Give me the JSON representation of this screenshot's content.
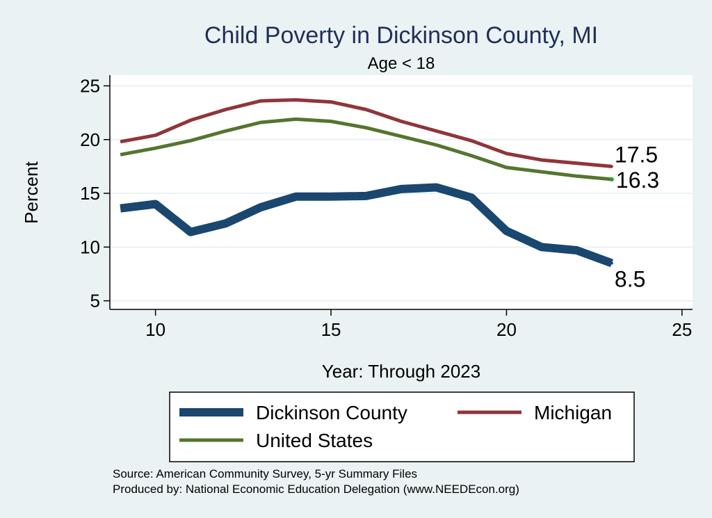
{
  "chart_data": {
    "type": "line",
    "title": "Child Poverty in Dickinson County, MI",
    "subtitle": "Age < 18",
    "xlabel": "Year: Through 2023",
    "ylabel": "Percent",
    "xlim": [
      8.7,
      25.3
    ],
    "ylim": [
      4.2,
      26
    ],
    "xticks": [
      10,
      15,
      20,
      25
    ],
    "yticks": [
      5,
      10,
      15,
      20,
      25
    ],
    "grid": true,
    "legend_position": "bottom",
    "x": [
      9,
      10,
      11,
      12,
      13,
      14,
      15,
      16,
      17,
      18,
      19,
      20,
      21,
      22,
      23
    ],
    "series": [
      {
        "name": "Dickinson County",
        "color": "#1a476f",
        "values": [
          13.6,
          14.0,
          11.4,
          12.2,
          13.7,
          14.7,
          14.7,
          14.75,
          15.4,
          15.55,
          14.6,
          11.5,
          10.0,
          9.7,
          8.5
        ],
        "end_label": "8.5"
      },
      {
        "name": "Michigan",
        "color": "#90353b",
        "values": [
          19.8,
          20.4,
          21.8,
          22.8,
          23.6,
          23.7,
          23.5,
          22.8,
          21.7,
          20.8,
          19.9,
          18.7,
          18.1,
          17.8,
          17.5
        ],
        "end_label": "17.5"
      },
      {
        "name": "United States",
        "color": "#55752f",
        "values": [
          18.6,
          19.2,
          19.9,
          20.8,
          21.6,
          21.9,
          21.7,
          21.1,
          20.3,
          19.5,
          18.5,
          17.4,
          17.0,
          16.6,
          16.3
        ],
        "end_label": "16.3"
      }
    ]
  },
  "source_lines": [
    "Source: American Community Survey, 5-yr Summary Files",
    "Produced by: National Economic Education Delegation (www.NEEDEcon.org)"
  ]
}
